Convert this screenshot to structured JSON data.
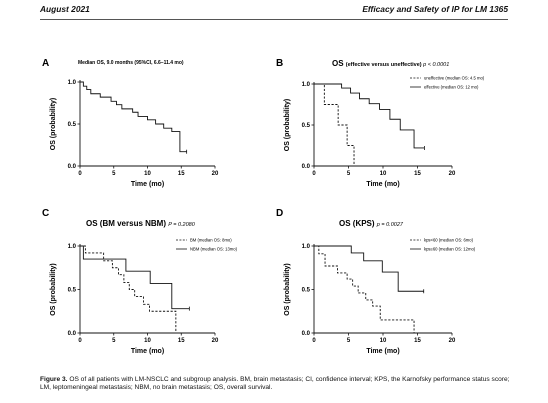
{
  "header": {
    "left": "August 2021",
    "right": "Efficacy and Safety of IP for LM   1365"
  },
  "caption": {
    "label": "Figure 3.",
    "text": "OS of all patients with LM-NSCLC and subgroup analysis. BM, brain metastasis; CI, confidence interval; KPS, the Karnofsky performance status score; LM, leptomeningeal metastasis; NBM, no brain metastasis; OS, overall survival."
  },
  "chart_data": [
    {
      "panel": "A",
      "type": "line",
      "step": true,
      "title": "Median OS, 9.0 months (95%CI, 6.6–11.4 mo)",
      "title_bold": "",
      "p_value": "",
      "xlabel": "Time (mo)",
      "ylabel": "OS (probability)",
      "xlim": [
        0,
        20
      ],
      "ylim": [
        0,
        1.0
      ],
      "xticks": [
        "0",
        "5",
        "10",
        "15",
        "20"
      ],
      "yticks": [
        "0.0",
        "0.5",
        "1.0"
      ],
      "series": [
        {
          "name": "",
          "style": "solid",
          "censor_end": true,
          "x": [
            0,
            0.5,
            1,
            1.6,
            3,
            4.6,
            5.4,
            6.2,
            7.8,
            8.6,
            10,
            11.2,
            12.4,
            13.6,
            14.8,
            15.8
          ],
          "y": [
            1.0,
            0.95,
            0.91,
            0.86,
            0.82,
            0.77,
            0.73,
            0.68,
            0.64,
            0.59,
            0.55,
            0.5,
            0.45,
            0.41,
            0.17,
            0.17
          ]
        }
      ]
    },
    {
      "panel": "B",
      "type": "line",
      "step": true,
      "title": "OS",
      "title_bold": "(effective versus uneffective)",
      "p_value": "p < 0.0001",
      "xlabel": "Time (mo)",
      "ylabel": "OS (probability)",
      "xlim": [
        0,
        20
      ],
      "ylim": [
        0,
        1.0
      ],
      "xticks": [
        "0",
        "5",
        "10",
        "15",
        "20"
      ],
      "yticks": [
        "0.0",
        "0.5",
        "1.0"
      ],
      "legend_position": "top-right",
      "series": [
        {
          "name": "uneffective (median OS: 4.5 mo)",
          "style": "dashed",
          "censor_end": false,
          "x": [
            0,
            1.5,
            3.5,
            4.8,
            5.8,
            6.2
          ],
          "y": [
            1.0,
            0.75,
            0.5,
            0.25,
            0.0,
            0.0
          ]
        },
        {
          "name": "effective (median OS: 12 mo)",
          "style": "solid",
          "censor_end": true,
          "x": [
            0,
            4,
            5.3,
            6.6,
            8,
            9.5,
            11,
            12.5,
            14.5,
            15.5,
            16
          ],
          "y": [
            1.0,
            0.95,
            0.89,
            0.82,
            0.76,
            0.69,
            0.57,
            0.44,
            0.22,
            0.22,
            0.22
          ]
        }
      ]
    },
    {
      "panel": "C",
      "type": "line",
      "step": true,
      "title": "OS (BM versus NBM)",
      "title_bold": "",
      "p_value": "P = 0.2080",
      "xlabel": "Time (mo)",
      "ylabel": "OS (probability)",
      "xlim": [
        0,
        20
      ],
      "ylim": [
        0,
        1.0
      ],
      "xticks": [
        "0",
        "5",
        "10",
        "15",
        "20"
      ],
      "yticks": [
        "0.0",
        "0.5",
        "1.0"
      ],
      "legend_position": "top-right",
      "series": [
        {
          "name": "BM (median OS: 8mo)",
          "style": "dashed",
          "censor_end": false,
          "x": [
            0,
            0.8,
            3.5,
            4.8,
            5.7,
            6.5,
            7.3,
            8.1,
            9.4,
            10.3,
            14.2,
            15.0
          ],
          "y": [
            1.0,
            0.92,
            0.83,
            0.75,
            0.67,
            0.58,
            0.5,
            0.42,
            0.33,
            0.25,
            0.0,
            0.0
          ]
        },
        {
          "name": "NBM (median OS: 13mo)",
          "style": "solid",
          "censor_end": true,
          "x": [
            0,
            0.5,
            3.2,
            6.8,
            10.4,
            13.6,
            15.6,
            16.2
          ],
          "y": [
            1.0,
            0.85,
            0.85,
            0.71,
            0.57,
            0.28,
            0.28,
            0.28
          ]
        }
      ]
    },
    {
      "panel": "D",
      "type": "line",
      "step": true,
      "title": "OS (KPS)",
      "title_bold": "",
      "p_value": "p = 0.0027",
      "xlabel": "Time (mo)",
      "ylabel": "OS (probability)",
      "xlim": [
        0,
        20
      ],
      "ylim": [
        0,
        1.0
      ],
      "xticks": [
        "0",
        "5",
        "10",
        "15",
        "20"
      ],
      "yticks": [
        "0.0",
        "0.5",
        "1.0"
      ],
      "legend_position": "top-right",
      "series": [
        {
          "name": "kps<60 (median OS: 6mo)",
          "style": "dashed",
          "censor_end": false,
          "x": [
            0,
            0.7,
            1.6,
            3.4,
            4.8,
            5.6,
            6.4,
            7.5,
            8.5,
            9.6,
            14.5,
            15.0
          ],
          "y": [
            1.0,
            0.91,
            0.77,
            0.69,
            0.62,
            0.54,
            0.46,
            0.38,
            0.31,
            0.15,
            0.0,
            0.0
          ]
        },
        {
          "name": "kps≥60 (median OS: 12mo)",
          "style": "solid",
          "censor_end": true,
          "x": [
            0,
            5.4,
            7.2,
            9.9,
            12.2,
            13.6,
            15.9
          ],
          "y": [
            1.0,
            0.92,
            0.83,
            0.7,
            0.48,
            0.48,
            0.48
          ]
        }
      ]
    }
  ]
}
